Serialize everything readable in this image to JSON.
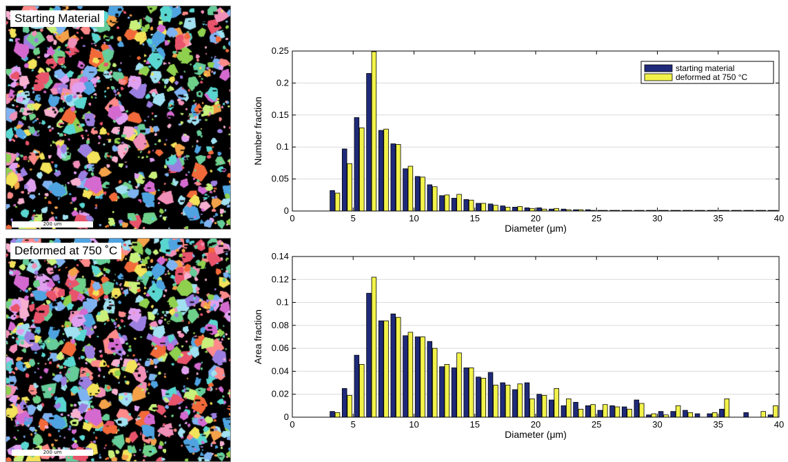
{
  "maps": [
    {
      "label": "Starting Material",
      "scale_label": "200 um"
    },
    {
      "label": "Deformed at 750 ˚C",
      "scale_label": "200 um"
    }
  ],
  "colors": {
    "starting": "#1f2a7a",
    "deformed": "#f2f24a",
    "edge": "#000000"
  },
  "chart_data": [
    {
      "type": "bar",
      "xlabel": "Diameter (μm)",
      "ylabel": "Number fraction",
      "xlim": [
        0,
        40
      ],
      "ylim": [
        0,
        0.25
      ],
      "xticks": [
        0,
        5,
        10,
        15,
        20,
        25,
        30,
        35,
        40
      ],
      "yticks": [
        0,
        0.05,
        0.1,
        0.15,
        0.2,
        0.25
      ],
      "ytick_labels": [
        "0",
        "0.05",
        "0.1",
        "0.15",
        "0.2",
        "0.25"
      ],
      "legend_position": "top-right",
      "x": [
        3.5,
        4.5,
        5.5,
        6.5,
        7.5,
        8.5,
        9.5,
        10.5,
        11.5,
        12.5,
        13.5,
        14.5,
        15.5,
        16.5,
        17.5,
        18.5,
        19.5,
        20.5,
        21.5,
        22.5,
        23.5,
        24.5,
        25.5,
        26.5,
        27.5,
        28.5,
        29.5,
        30.5,
        31.5,
        32.5,
        33.5,
        34.5,
        35.5,
        36.5,
        37.5,
        38.5,
        39.5
      ],
      "series": [
        {
          "name": "starting material",
          "values": [
            0.032,
            0.097,
            0.146,
            0.215,
            0.126,
            0.105,
            0.066,
            0.054,
            0.041,
            0.024,
            0.02,
            0.018,
            0.012,
            0.011,
            0.008,
            0.006,
            0.005,
            0.005,
            0.003,
            0.003,
            0.002,
            0.002,
            0.001,
            0.001,
            0.001,
            0.001,
            0.001,
            0.001,
            0.001,
            0.001,
            0.001,
            0.001,
            0.001,
            0.001,
            0.001,
            0.001,
            0.001
          ]
        },
        {
          "name": "deformed at 750 °C",
          "values": [
            0.028,
            0.074,
            0.13,
            0.249,
            0.128,
            0.104,
            0.07,
            0.053,
            0.038,
            0.025,
            0.026,
            0.017,
            0.012,
            0.009,
            0.006,
            0.007,
            0.004,
            0.003,
            0.004,
            0.002,
            0.002,
            0.001,
            0.001,
            0.001,
            0.001,
            0.001,
            0.001,
            0.001,
            0.001,
            0.001,
            0.001,
            0.001,
            0.001,
            0.001,
            0.001,
            0.001,
            0.001
          ]
        }
      ]
    },
    {
      "type": "bar",
      "xlabel": "Diameter (μm)",
      "ylabel": "Area fraction",
      "xlim": [
        0,
        40
      ],
      "ylim": [
        0,
        0.14
      ],
      "xticks": [
        0,
        5,
        10,
        15,
        20,
        25,
        30,
        35,
        40
      ],
      "yticks": [
        0,
        0.02,
        0.04,
        0.06,
        0.08,
        0.1,
        0.12,
        0.14
      ],
      "ytick_labels": [
        "0",
        "0.02",
        "0.04",
        "0.06",
        "0.08",
        "0.1",
        "0.12",
        "0.14"
      ],
      "x": [
        3.5,
        4.5,
        5.5,
        6.5,
        7.5,
        8.5,
        9.5,
        10.5,
        11.5,
        12.5,
        13.5,
        14.5,
        15.5,
        16.5,
        17.5,
        18.5,
        19.5,
        20.5,
        21.5,
        22.5,
        23.5,
        24.5,
        25.5,
        26.5,
        27.5,
        28.5,
        29.5,
        30.5,
        31.5,
        32.5,
        33.5,
        34.5,
        35.5,
        36.5,
        37.5,
        38.5,
        39.5
      ],
      "series": [
        {
          "name": "starting material",
          "values": [
            0.005,
            0.025,
            0.054,
            0.108,
            0.084,
            0.09,
            0.071,
            0.07,
            0.066,
            0.044,
            0.043,
            0.043,
            0.035,
            0.039,
            0.03,
            0.024,
            0.03,
            0.02,
            0.015,
            0.01,
            0.013,
            0.01,
            0.006,
            0.01,
            0.009,
            0.015,
            0.002,
            0.005,
            0.005,
            0.006,
            0.003,
            0.003,
            0.007,
            0,
            0.004,
            0,
            0.002
          ]
        },
        {
          "name": "deformed at 750 °C",
          "values": [
            0.004,
            0.019,
            0.046,
            0.122,
            0.084,
            0.087,
            0.074,
            0.07,
            0.06,
            0.046,
            0.056,
            0.043,
            0.034,
            0.028,
            0.028,
            0.029,
            0.016,
            0.019,
            0.025,
            0.016,
            0.007,
            0.011,
            0.011,
            0.009,
            0.007,
            0.012,
            0.003,
            0.002,
            0.01,
            0.004,
            0,
            0.004,
            0.016,
            0,
            0,
            0.005,
            0.01
          ]
        }
      ]
    }
  ]
}
